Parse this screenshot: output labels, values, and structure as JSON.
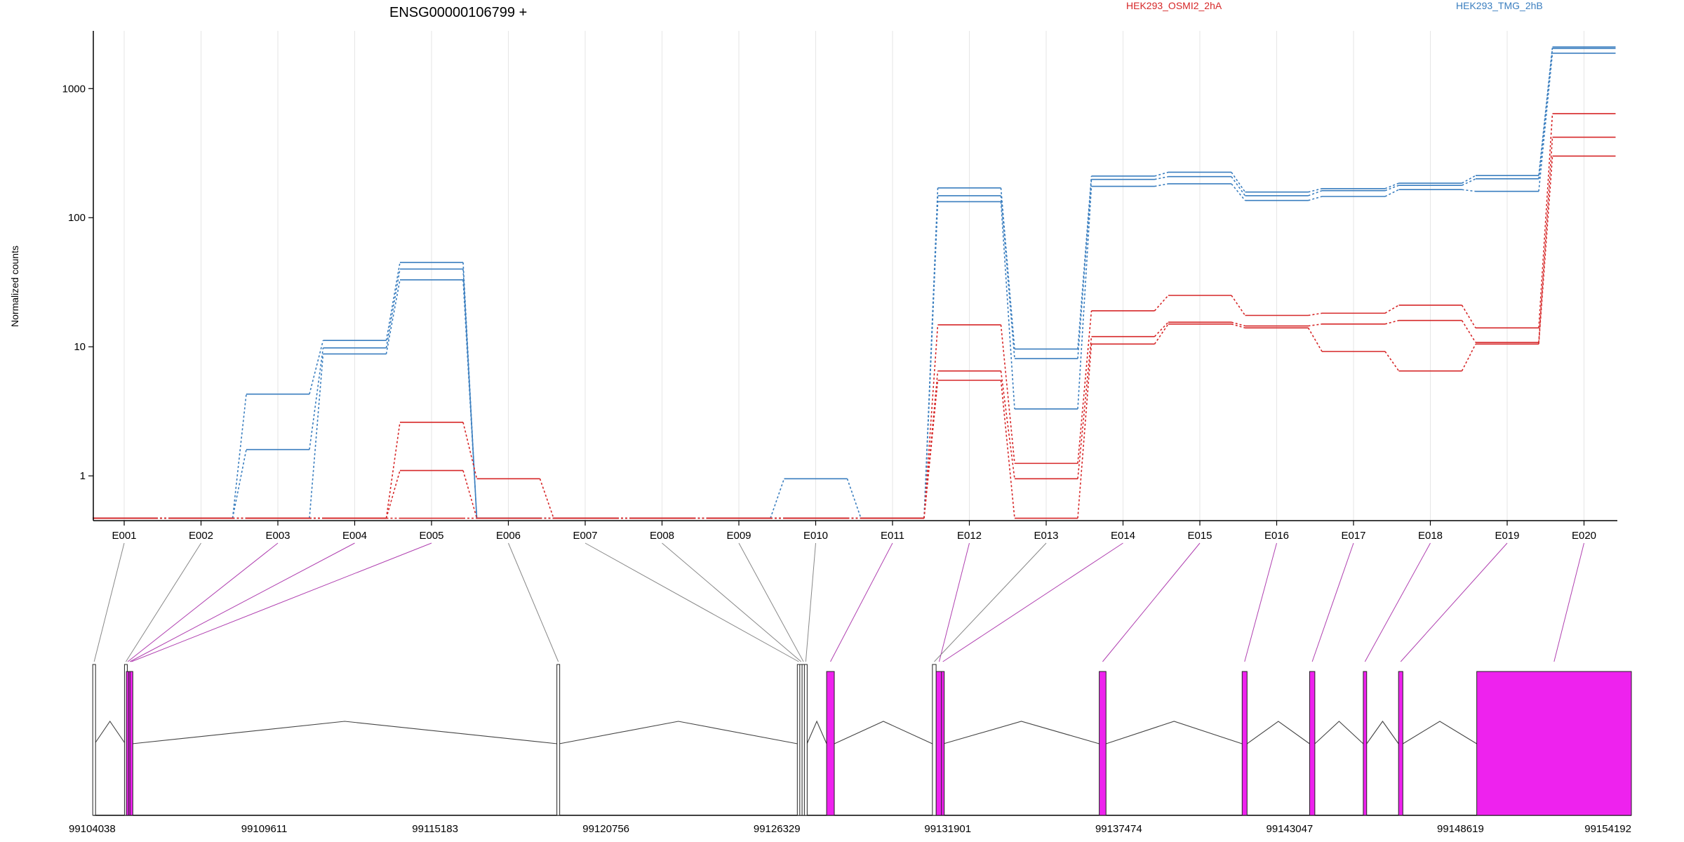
{
  "chart_data": {
    "type": "line",
    "title": "ENSG00000106799 +",
    "ylabel": "Normalized counts",
    "xlabel": "",
    "y_scale": "log",
    "ylim": [
      0.45,
      2800
    ],
    "y_ticks": [
      1,
      10,
      100,
      1000
    ],
    "y_tick_labels": [
      "1",
      "10",
      "100",
      "1000"
    ],
    "grid": true,
    "legend_position": "top",
    "legend": [
      {
        "name": "HEK293_OSMI2_2hA",
        "color": "#d62728"
      },
      {
        "name": "HEK293_TMG_2hB",
        "color": "#3a7ebf"
      }
    ],
    "categories": [
      "E001",
      "E002",
      "E003",
      "E004",
      "E005",
      "E006",
      "E007",
      "E008",
      "E009",
      "E010",
      "E011",
      "E012",
      "E013",
      "E014",
      "E015",
      "E016",
      "E017",
      "E018",
      "E019",
      "E020"
    ],
    "series": [
      {
        "group": "HEK293_TMG_2hB",
        "color": "#3a7ebf",
        "values": [
          0.47,
          0.47,
          4.3,
          11.2,
          45,
          0.47,
          0.47,
          0.47,
          0.47,
          0.95,
          0.47,
          170,
          9.6,
          210,
          225,
          158,
          168,
          185,
          212,
          2100
        ]
      },
      {
        "group": "HEK293_TMG_2hB",
        "color": "#3a7ebf",
        "values": [
          0.47,
          0.47,
          1.6,
          9.8,
          40,
          0.47,
          0.47,
          0.47,
          0.47,
          0.47,
          0.47,
          148,
          8.1,
          198,
          208,
          148,
          162,
          178,
          200,
          2050
        ]
      },
      {
        "group": "HEK293_TMG_2hB",
        "color": "#3a7ebf",
        "values": [
          0.47,
          0.47,
          0.47,
          8.8,
          33,
          0.47,
          0.47,
          0.47,
          0.47,
          0.47,
          0.47,
          133,
          3.3,
          175,
          183,
          136,
          146,
          165,
          160,
          1880
        ]
      },
      {
        "group": "HEK293_OSMI2_2hA",
        "color": "#d62728",
        "values": [
          0.47,
          0.47,
          0.47,
          0.47,
          2.6,
          0.95,
          0.47,
          0.47,
          0.47,
          0.47,
          0.47,
          14.8,
          1.25,
          19,
          25,
          17.5,
          18.2,
          21,
          14,
          640
        ]
      },
      {
        "group": "HEK293_OSMI2_2hA",
        "color": "#d62728",
        "values": [
          0.47,
          0.47,
          0.47,
          0.47,
          1.1,
          0.47,
          0.47,
          0.47,
          0.47,
          0.47,
          0.47,
          6.5,
          0.95,
          12,
          15.5,
          14.5,
          15,
          16,
          10.8,
          420
        ]
      },
      {
        "group": "HEK293_OSMI2_2hA",
        "color": "#d62728",
        "values": [
          0.47,
          0.47,
          0.47,
          0.47,
          0.47,
          0.47,
          0.47,
          0.47,
          0.47,
          0.47,
          0.47,
          5.5,
          0.47,
          10.5,
          15,
          14,
          9.2,
          6.5,
          10.5,
          300
        ]
      }
    ],
    "genome": {
      "range": [
        99104038,
        99154192
      ],
      "tick_labels": [
        "99104038",
        "99109611",
        "99115183",
        "99120756",
        "99126329",
        "99131901",
        "99137474",
        "99143047",
        "99148619",
        "99154192"
      ],
      "tick_values": [
        99104038,
        99109611,
        99115183,
        99120756,
        99126329,
        99131901,
        99137474,
        99143047,
        99148619,
        99154192
      ],
      "exon_colors": {
        "highlight": "#ee22ee",
        "plain": "#ffffff"
      },
      "exons": [
        {
          "id": "E001",
          "start": 99104050,
          "end": 99104080,
          "highlight": false
        },
        {
          "id": "E002",
          "start": 99105080,
          "end": 99105120,
          "highlight": false
        },
        {
          "id": "E003",
          "start": 99105120,
          "end": 99105200,
          "highlight": true
        },
        {
          "id": "E004",
          "start": 99105200,
          "end": 99105260,
          "highlight": true
        },
        {
          "id": "E005",
          "start": 99105260,
          "end": 99105300,
          "highlight": true
        },
        {
          "id": "E006",
          "start": 99119170,
          "end": 99119230,
          "highlight": false
        },
        {
          "id": "E007",
          "start": 99127000,
          "end": 99127080,
          "highlight": false
        },
        {
          "id": "E008",
          "start": 99127080,
          "end": 99127160,
          "highlight": false
        },
        {
          "id": "E009",
          "start": 99127160,
          "end": 99127230,
          "highlight": false
        },
        {
          "id": "E010",
          "start": 99127230,
          "end": 99127310,
          "highlight": false
        },
        {
          "id": "E011",
          "start": 99127950,
          "end": 99128200,
          "highlight": true
        },
        {
          "id": "E012",
          "start": 99131520,
          "end": 99131720,
          "highlight": true
        },
        {
          "id": "E013",
          "start": 99131400,
          "end": 99131520,
          "highlight": false
        },
        {
          "id": "E014",
          "start": 99131720,
          "end": 99131760,
          "highlight": true
        },
        {
          "id": "E015",
          "start": 99136840,
          "end": 99137060,
          "highlight": true
        },
        {
          "id": "E016",
          "start": 99141500,
          "end": 99141660,
          "highlight": true
        },
        {
          "id": "E017",
          "start": 99143700,
          "end": 99143870,
          "highlight": true
        },
        {
          "id": "E018",
          "start": 99145450,
          "end": 99145560,
          "highlight": true
        },
        {
          "id": "E019",
          "start": 99146600,
          "end": 99146740,
          "highlight": true
        },
        {
          "id": "E020",
          "start": 99149150,
          "end": 99154192,
          "highlight": true
        }
      ]
    }
  }
}
